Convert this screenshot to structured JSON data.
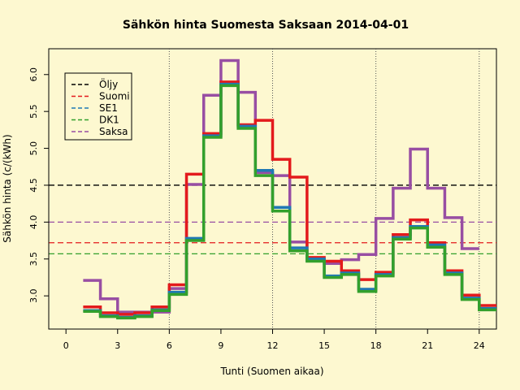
{
  "chart_data": {
    "type": "line",
    "step": true,
    "title": "Sähkön hinta Suomesta Saksaan 2014-04-01",
    "xlabel": "Tunti (Suomen aikaa)",
    "ylabel": "Sähkön hinta (c/(kWh)",
    "xlim": [
      -1.0,
      25.0
    ],
    "ylim": [
      2.55,
      6.35
    ],
    "xticks": [
      0,
      3,
      6,
      9,
      12,
      15,
      18,
      21,
      24
    ],
    "xtick_labels": [
      "0",
      "3",
      "6",
      "9",
      "12",
      "15",
      "18",
      "21",
      "24"
    ],
    "yticks": [
      3.0,
      3.5,
      4.0,
      4.5,
      5.0,
      5.5,
      6.0
    ],
    "ytick_labels": [
      "3.0",
      "3.5",
      "4.0",
      "4.5",
      "5.0",
      "5.5",
      "6.0"
    ],
    "vlines": [
      6,
      12,
      18,
      24
    ],
    "legend_position": "top-left",
    "hours": [
      1,
      2,
      3,
      4,
      5,
      6,
      7,
      8,
      9,
      10,
      11,
      12,
      13,
      14,
      15,
      16,
      17,
      18,
      19,
      20,
      21,
      22,
      23,
      24,
      25
    ],
    "series": [
      {
        "name": "Öljy",
        "color": "#000000",
        "style": "dashed",
        "constant": 4.5
      },
      {
        "name": "Suomi",
        "color": "#e31a1c",
        "style": "dashed",
        "constant": 3.72,
        "values": [
          2.85,
          2.77,
          2.75,
          2.77,
          2.85,
          3.15,
          4.65,
          5.2,
          5.9,
          5.32,
          5.38,
          4.85,
          4.61,
          3.52,
          3.47,
          3.34,
          3.22,
          3.32,
          3.83,
          4.03,
          3.72,
          3.34,
          3.01,
          2.87
        ]
      },
      {
        "name": "SE1",
        "color": "#1f78b4",
        "style": "dashed",
        "constant": null,
        "values": [
          2.8,
          2.73,
          2.71,
          2.73,
          2.81,
          3.05,
          3.78,
          5.17,
          5.87,
          5.3,
          4.7,
          4.2,
          3.65,
          3.5,
          3.27,
          3.31,
          3.09,
          3.29,
          3.79,
          3.94,
          3.69,
          3.31,
          2.97,
          2.83
        ]
      },
      {
        "name": "DK1",
        "color": "#33a02c",
        "style": "dashed",
        "constant": 3.57,
        "values": [
          2.79,
          2.72,
          2.7,
          2.72,
          2.8,
          3.02,
          3.75,
          5.15,
          5.85,
          5.27,
          4.63,
          4.15,
          3.61,
          3.47,
          3.25,
          3.29,
          3.06,
          3.27,
          3.77,
          3.92,
          3.66,
          3.29,
          2.95,
          2.81
        ]
      },
      {
        "name": "Saksa",
        "color": "#984ea3",
        "style": "dashed",
        "constant": 4.0,
        "values": [
          3.21,
          2.96,
          2.78,
          2.78,
          2.78,
          3.1,
          4.51,
          5.72,
          6.19,
          5.76,
          4.67,
          4.63,
          3.73,
          3.48,
          3.44,
          3.49,
          3.56,
          4.05,
          4.46,
          4.99,
          4.46,
          4.06,
          3.64,
          null
        ]
      }
    ]
  }
}
